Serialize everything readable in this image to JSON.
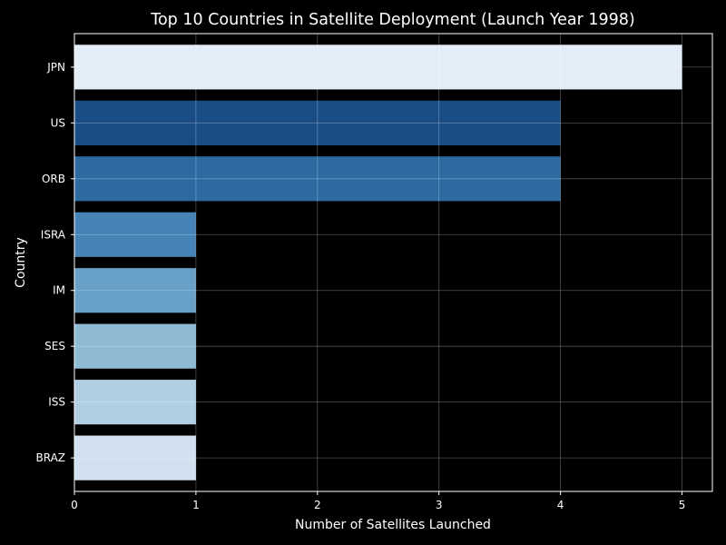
{
  "chart_data": {
    "type": "bar",
    "orientation": "horizontal",
    "title": "Top 10 Countries in Satellite Deployment (Launch Year 1998)",
    "xlabel": "Number of Satellites Launched",
    "ylabel": "Country",
    "categories": [
      "JPN",
      "US",
      "ORB",
      "ISRA",
      "IM",
      "SES",
      "ISS",
      "BRAZ"
    ],
    "values": [
      5,
      4,
      4,
      1,
      1,
      1,
      1,
      1
    ],
    "colors": [
      "#e3edf8",
      "#1a4d86",
      "#2c6aa1",
      "#4683b7",
      "#69a0c8",
      "#8ebad3",
      "#b1cfe3",
      "#d2e1ef"
    ],
    "xlim": [
      0,
      5.25
    ],
    "xticks": [
      0,
      1,
      2,
      3,
      4,
      5
    ],
    "grid": true,
    "background": "#000000"
  }
}
